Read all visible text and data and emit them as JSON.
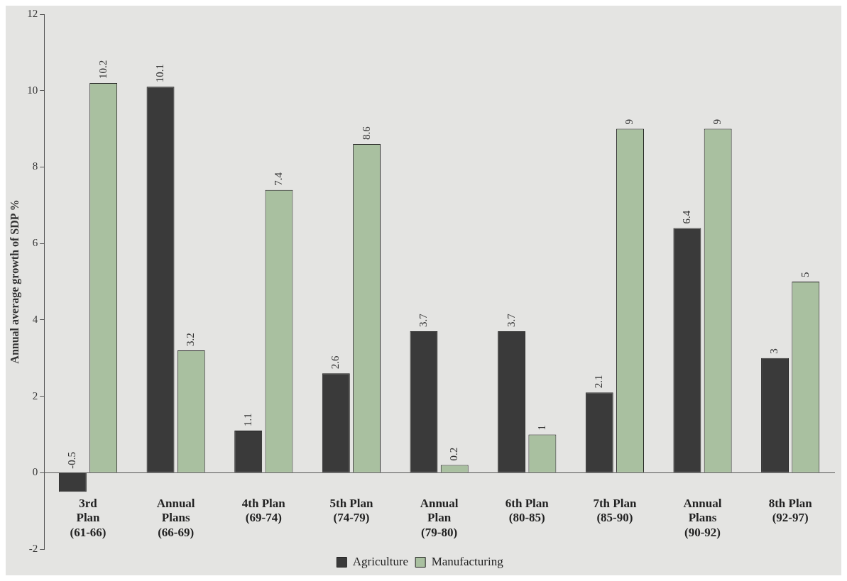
{
  "chart_data": {
    "type": "bar",
    "ylabel": "Annual average growth of SDP %",
    "categories": [
      "3rd\nPlan\n(61-66)",
      "Annual\nPlans\n(66-69)",
      "4th Plan\n(69-74)",
      "5th Plan\n(74-79)",
      "Annual\nPlan\n(79-80)",
      "6th Plan\n(80-85)",
      "7th Plan\n(85-90)",
      "Annual\nPlans\n(90-92)",
      "8th Plan\n(92-97)"
    ],
    "series": [
      {
        "name": "Agriculture",
        "color": "#3a3a3a",
        "values": [
          -0.5,
          10.1,
          1.1,
          2.6,
          3.7,
          3.7,
          2.1,
          6.4,
          3
        ]
      },
      {
        "name": "Manufacturing",
        "color": "#a9c0a0",
        "values": [
          10.2,
          3.2,
          7.4,
          8.6,
          0.2,
          1,
          9,
          9,
          5
        ]
      }
    ],
    "ylim": [
      -2,
      12
    ],
    "yticks": [
      -2,
      0,
      2,
      4,
      6,
      8,
      10,
      12
    ],
    "grid": false,
    "legend": "bottom",
    "data_labels": true
  }
}
